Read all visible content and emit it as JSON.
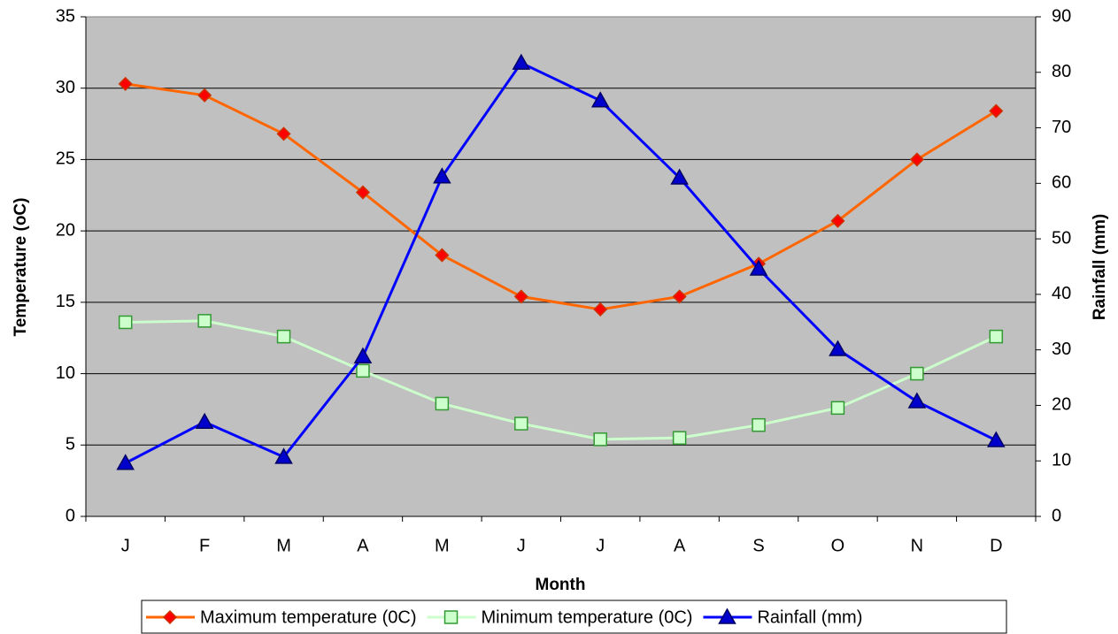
{
  "chart_data": {
    "type": "line",
    "x_label": "Month",
    "y_label": "Temperature (oC)",
    "y2_label": "Rainfall (mm)",
    "categories": [
      "J",
      "F",
      "M",
      "A",
      "M",
      "J",
      "J",
      "A",
      "S",
      "O",
      "N",
      "D"
    ],
    "series": [
      {
        "name": "Maximum temperature (0C)",
        "color": "#ff6600",
        "marker": "diamond",
        "marker_color": "#ff0000",
        "values": [
          30.3,
          29.5,
          26.8,
          22.7,
          18.3,
          15.4,
          14.5,
          15.4,
          17.7,
          20.7,
          25.0,
          28.4
        ]
      },
      {
        "name": "Minimum temperature (0C)",
        "color": "#ccffcc",
        "marker": "square",
        "marker_color": "#ccffcc",
        "values": [
          13.6,
          13.7,
          12.6,
          10.2,
          7.9,
          6.5,
          5.4,
          5.5,
          6.4,
          7.6,
          10.0,
          12.6
        ]
      },
      {
        "name": "Rainfall (mm)",
        "color": "#0000ff",
        "marker": "triangle",
        "marker_color": "#0000cc",
        "axis": "y2",
        "values": [
          9.6,
          17.0,
          10.7,
          28.8,
          61.2,
          81.7,
          74.9,
          61.0,
          44.6,
          30.1,
          20.7,
          13.7
        ]
      }
    ],
    "ylim": [
      0,
      35
    ],
    "yticks": [
      0,
      5,
      10,
      15,
      20,
      25,
      30,
      35
    ],
    "y2lim": [
      0,
      90
    ],
    "y2ticks": [
      0,
      10,
      20,
      30,
      40,
      50,
      60,
      70,
      80,
      90
    ],
    "grid": true,
    "legend": "bottom"
  }
}
